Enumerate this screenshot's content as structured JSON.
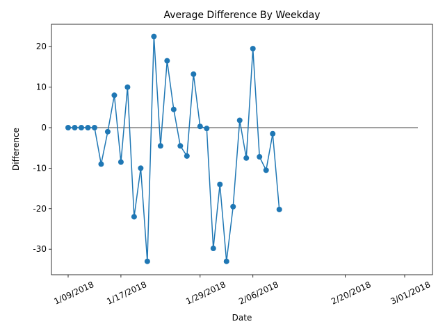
{
  "chart_data": {
    "type": "line",
    "title": "Average Difference By Weekday",
    "xlabel": "Date",
    "ylabel": "Difference",
    "ylim": [
      -35.5,
      25.5
    ],
    "xlim": [
      "2018-01-07",
      "2018-03-04"
    ],
    "grid": false,
    "legend": "none",
    "x_ticks": [
      {
        "date": "2018-01-09",
        "label": "1/09/2018"
      },
      {
        "date": "2018-01-17",
        "label": "1/17/2018"
      },
      {
        "date": "2018-01-29",
        "label": "1/29/2018"
      },
      {
        "date": "2018-02-06",
        "label": "2/06/2018"
      },
      {
        "date": "2018-02-20",
        "label": "2/20/2018"
      },
      {
        "date": "2018-03-01",
        "label": "3/01/2018"
      }
    ],
    "y_ticks": [
      -30,
      -20,
      -10,
      0,
      10,
      20
    ],
    "series": [
      {
        "color": "#1f77b4",
        "marker": "circle",
        "points": [
          {
            "x": "2018-01-09",
            "y": 0
          },
          {
            "x": "2018-01-10",
            "y": 0
          },
          {
            "x": "2018-01-11",
            "y": 0
          },
          {
            "x": "2018-01-12",
            "y": 0
          },
          {
            "x": "2018-01-13",
            "y": 0
          },
          {
            "x": "2018-01-14",
            "y": -9.0
          },
          {
            "x": "2018-01-15",
            "y": -1.0
          },
          {
            "x": "2018-01-16",
            "y": 8.0
          },
          {
            "x": "2018-01-17",
            "y": -8.5
          },
          {
            "x": "2018-01-18",
            "y": 10.0
          },
          {
            "x": "2018-01-19",
            "y": -22.0
          },
          {
            "x": "2018-01-20",
            "y": -10.0
          },
          {
            "x": "2018-01-21",
            "y": -33.0
          },
          {
            "x": "2018-01-22",
            "y": 22.5
          },
          {
            "x": "2018-01-23",
            "y": -4.5
          },
          {
            "x": "2018-01-24",
            "y": 16.5
          },
          {
            "x": "2018-01-25",
            "y": 4.5
          },
          {
            "x": "2018-01-26",
            "y": -4.5
          },
          {
            "x": "2018-01-27",
            "y": -7.0
          },
          {
            "x": "2018-01-28",
            "y": 13.2
          },
          {
            "x": "2018-01-29",
            "y": 0.3
          },
          {
            "x": "2018-01-30",
            "y": -0.2
          },
          {
            "x": "2018-01-31",
            "y": -29.8
          },
          {
            "x": "2018-02-01",
            "y": -14.0
          },
          {
            "x": "2018-02-02",
            "y": -33.0
          },
          {
            "x": "2018-02-03",
            "y": -19.5
          },
          {
            "x": "2018-02-04",
            "y": 1.8
          },
          {
            "x": "2018-02-05",
            "y": -7.5
          },
          {
            "x": "2018-02-06",
            "y": 19.5
          },
          {
            "x": "2018-02-07",
            "y": -7.2
          },
          {
            "x": "2018-02-08",
            "y": -10.5
          },
          {
            "x": "2018-02-09",
            "y": -1.5
          },
          {
            "x": "2018-02-10",
            "y": -20.2
          }
        ]
      }
    ],
    "reference_line": {
      "y": 0,
      "x_start": "2018-01-09",
      "x_end": "2018-03-03",
      "color": "#808080"
    }
  }
}
